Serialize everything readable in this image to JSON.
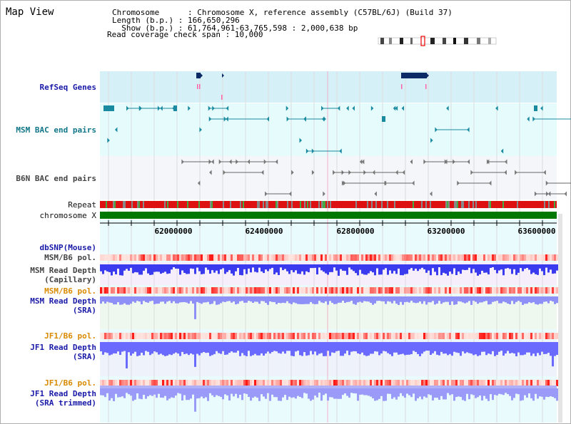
{
  "header": {
    "title": "Map View",
    "chromosome_line": "Chromosome      : Chromosome X, reference assembly (C57BL/6J) (Build 37)",
    "length_line": "Length (b.p.) : 166,650,296",
    "show_line": "  Show (b.p.) : 61,764,961-63,765,598 : 2,000,638 bp",
    "coverage_line": "Read coverage check span : 10,000"
  },
  "tracks": {
    "refseq": "RefSeq Genes",
    "msm_bac": "MSM BAC end pairs",
    "b6n_bac": "B6N BAC end pairs",
    "repeat": "Repeat",
    "chromosome": "chromosome X",
    "dbsnp": "dbSNP(Mouse)",
    "msm_b6_pol_1": "MSM/B6 pol.",
    "msm_depth_cap": "MSM Read Depth\n(Capillary)",
    "msm_b6_pol_2": "MSM/B6 pol.",
    "msm_depth_sra": "MSM Read Depth\n(SRA)",
    "jf1_b6_pol_1": "JF1/B6 pol.",
    "jf1_depth_sra": "JF1 Read Depth\n(SRA)",
    "jf1_b6_pol_2": "JF1/B6 pol.",
    "jf1_depth_trim": "JF1 Read Depth\n(SRA trimmed)"
  },
  "axis": {
    "ticks": [
      "62000000",
      "62400000",
      "62800000",
      "63200000",
      "63600000"
    ]
  },
  "colors": {
    "refseq_bg": "#d6f0f8",
    "msm_bg": "#e6fbfb",
    "b6n_bg": "#f4f6fa",
    "teal": "#1a8aa0",
    "navy": "#0b2a66",
    "depth_blue": "#5a5aff",
    "chromosome_green": "#007700",
    "repeat_red": "#dd1111"
  },
  "ideogram": {
    "icon": "chromosome-ideogram-icon"
  }
}
